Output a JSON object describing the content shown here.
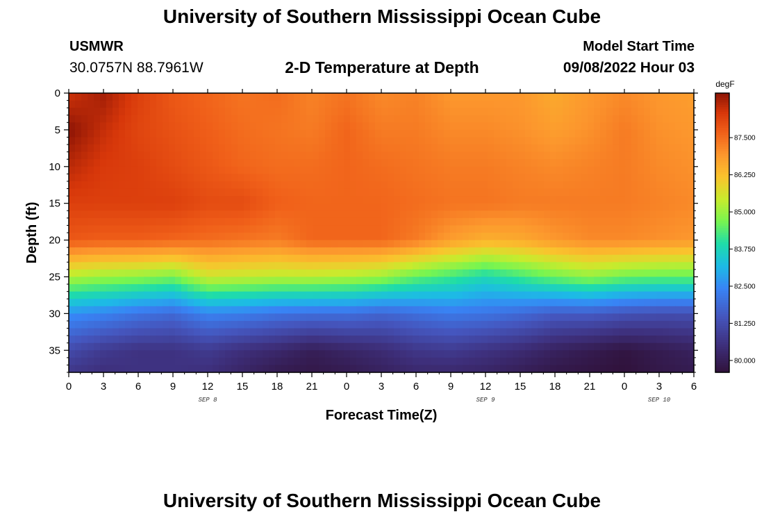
{
  "page": {
    "title": "University of Southern Mississippi Ocean Cube",
    "station_id": "USMWR",
    "station_coords": "30.0757N  88.7961W",
    "plot_title": "2-D Temperature at Depth",
    "start_label": "Model Start Time",
    "start_value": "09/08/2022 Hour 03",
    "footer_title": "University of Southern Mississippi Ocean Cube"
  },
  "chart_data": {
    "type": "heatmap",
    "title": "2-D Temperature at Depth",
    "xlabel": "Forecast Time(Z)",
    "ylabel": "Depth (ft)",
    "x_ticks": [
      "0",
      "3",
      "6",
      "9",
      "12",
      "15",
      "18",
      "21",
      "0",
      "3",
      "6",
      "9",
      "12",
      "15",
      "18",
      "21",
      "0",
      "3",
      "6"
    ],
    "x_range_hours": [
      0,
      54
    ],
    "date_labels": [
      {
        "text": "SEP 8",
        "hour": 12
      },
      {
        "text": "SEP 9",
        "hour": 36
      },
      {
        "text": "SEP 10",
        "hour": 51
      }
    ],
    "y_ticks": [
      0,
      5,
      10,
      15,
      20,
      25,
      30,
      35
    ],
    "y_range_ft": [
      0,
      38
    ],
    "colorbar": {
      "unit": "degF",
      "ticks": [
        "87.500",
        "86.250",
        "85.000",
        "83.750",
        "82.500",
        "81.250",
        "80.000"
      ],
      "range": [
        79.6,
        89.0
      ]
    },
    "grid_hours": [
      0,
      3,
      6,
      9,
      12,
      15,
      18,
      21,
      24,
      27,
      30,
      33,
      36,
      39,
      42,
      45,
      48,
      51,
      54
    ],
    "grid_depths_ft": [
      0,
      5,
      10,
      15,
      20,
      25,
      30,
      35,
      38
    ],
    "values_degF": [
      [
        88.4,
        88.8,
        88.2,
        87.8,
        87.6,
        87.4,
        87.5,
        87.2,
        87.4,
        87.1,
        87.2,
        86.9,
        86.9,
        86.9,
        86.6,
        86.9,
        87.1,
        86.9,
        86.8
      ],
      [
        89.0,
        88.5,
        88.1,
        87.9,
        87.7,
        87.5,
        87.4,
        87.3,
        87.6,
        87.3,
        87.3,
        87.1,
        87.1,
        87.0,
        86.8,
        87.0,
        87.3,
        87.0,
        86.9
      ],
      [
        88.6,
        88.3,
        88.2,
        88.0,
        87.8,
        87.6,
        87.5,
        87.5,
        87.6,
        87.5,
        87.4,
        87.3,
        87.3,
        87.2,
        87.1,
        87.2,
        87.3,
        87.1,
        87.0
      ],
      [
        88.2,
        88.2,
        88.2,
        88.2,
        88.0,
        88.0,
        87.7,
        87.6,
        87.6,
        87.6,
        87.5,
        87.4,
        87.4,
        87.3,
        87.3,
        87.3,
        87.3,
        87.2,
        87.1
      ],
      [
        87.8,
        87.7,
        87.7,
        87.6,
        87.5,
        87.4,
        87.3,
        87.6,
        87.6,
        87.6,
        87.3,
        86.8,
        86.5,
        86.6,
        86.9,
        87.1,
        87.1,
        87.0,
        86.9
      ],
      [
        85.2,
        85.0,
        84.9,
        84.7,
        85.5,
        85.4,
        85.3,
        85.3,
        85.2,
        85.0,
        84.5,
        84.2,
        83.8,
        84.2,
        84.6,
        84.9,
        84.6,
        84.5,
        84.5
      ],
      [
        82.6,
        82.4,
        82.1,
        81.9,
        82.4,
        82.3,
        82.1,
        82.0,
        82.0,
        81.8,
        82.0,
        82.2,
        82.1,
        81.9,
        81.6,
        81.6,
        81.4,
        81.3,
        81.3
      ],
      [
        81.2,
        80.8,
        80.6,
        80.6,
        80.8,
        80.5,
        80.3,
        80.0,
        80.2,
        80.4,
        80.7,
        80.8,
        80.6,
        80.4,
        80.1,
        79.9,
        79.7,
        79.9,
        80.1
      ],
      [
        80.7,
        80.5,
        80.6,
        80.6,
        80.5,
        80.2,
        79.9,
        79.8,
        79.9,
        80.1,
        80.3,
        80.3,
        80.2,
        80.0,
        79.8,
        79.7,
        79.6,
        79.8,
        79.9
      ]
    ]
  }
}
